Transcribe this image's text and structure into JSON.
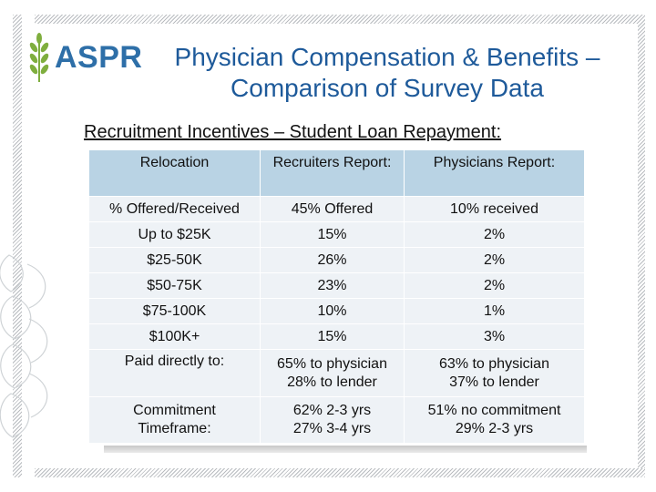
{
  "logo": {
    "text": "ASPR"
  },
  "title": "Physician Compensation & Benefits – Comparison of Survey Data",
  "subtitle": "Recruitment Incentives – Student Loan Repayment:",
  "table": {
    "headers": [
      "Relocation",
      "Recruiters Report:",
      "Physicians Report:"
    ],
    "rows": [
      [
        "% Offered/Received",
        "45% Offered",
        "10% received"
      ],
      [
        "Up to $25K",
        "15%",
        "2%"
      ],
      [
        "$25-50K",
        "26%",
        "2%"
      ],
      [
        "$50-75K",
        "23%",
        "2%"
      ],
      [
        "$75-100K",
        "10%",
        "1%"
      ],
      [
        "$100K+",
        "15%",
        "3%"
      ],
      [
        "Paid directly to:",
        "65% to physician\n28% to lender",
        "63% to physician\n37% to lender"
      ],
      [
        "Commitment Timeframe:",
        "62% 2-3 yrs\n27% 3-4 yrs",
        "51% no commitment\n29% 2-3 yrs"
      ]
    ]
  },
  "colors": {
    "title": "#1e5a9a",
    "logo": "#2e6fa8",
    "header_bg": "#b9d3e4",
    "row_bg": "#eef2f6",
    "wheat": "#7fae3e"
  }
}
